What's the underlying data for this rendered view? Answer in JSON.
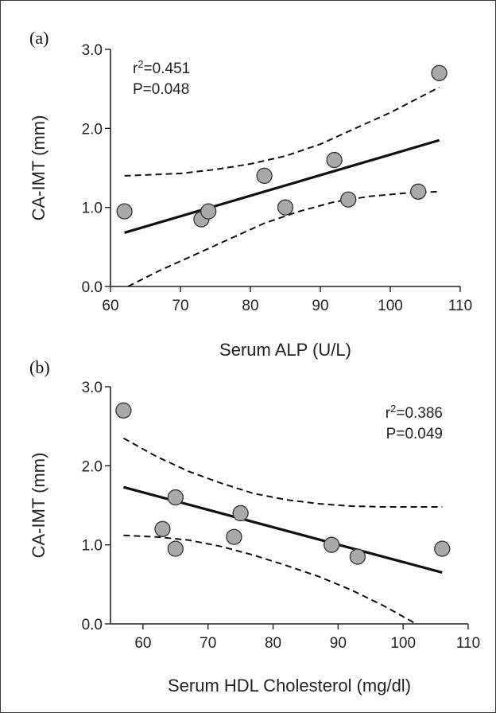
{
  "chart_data": [
    {
      "type": "scatter",
      "panel_label": "(a)",
      "xlabel": "Serum ALP (U/L)",
      "ylabel": "CA-IMT (mm)",
      "xlim": [
        60,
        110
      ],
      "ylim": [
        0,
        3
      ],
      "x_ticks": [
        "60",
        "70",
        "80",
        "90",
        "100",
        "110"
      ],
      "y_ticks": [
        "0.0",
        "1.0",
        "2.0",
        "3.0"
      ],
      "x_tick_values": [
        60,
        70,
        80,
        90,
        100,
        110
      ],
      "y_tick_values": [
        0,
        1,
        2,
        3
      ],
      "annotation": {
        "line1_prefix": "r",
        "line1_sup": "2",
        "line1_suffix": "=0.451",
        "line2": "P=0.048"
      },
      "annotation_position": "top-left",
      "points": [
        {
          "x": 62,
          "y": 0.95
        },
        {
          "x": 73,
          "y": 0.85
        },
        {
          "x": 74,
          "y": 0.95
        },
        {
          "x": 82,
          "y": 1.4
        },
        {
          "x": 85,
          "y": 1.0
        },
        {
          "x": 92,
          "y": 1.6
        },
        {
          "x": 94,
          "y": 1.1
        },
        {
          "x": 104,
          "y": 1.2
        },
        {
          "x": 107,
          "y": 2.7
        }
      ],
      "regression_line": [
        {
          "x": 62,
          "y": 0.68
        },
        {
          "x": 107,
          "y": 1.85
        }
      ],
      "ci_upper": [
        {
          "x": 62,
          "y": 1.4
        },
        {
          "x": 70,
          "y": 1.43
        },
        {
          "x": 75,
          "y": 1.48
        },
        {
          "x": 80,
          "y": 1.55
        },
        {
          "x": 85,
          "y": 1.65
        },
        {
          "x": 90,
          "y": 1.8
        },
        {
          "x": 95,
          "y": 2.0
        },
        {
          "x": 100,
          "y": 2.2
        },
        {
          "x": 107,
          "y": 2.52
        }
      ],
      "ci_lower": [
        {
          "x": 62.5,
          "y": 0.0
        },
        {
          "x": 67,
          "y": 0.2
        },
        {
          "x": 72,
          "y": 0.4
        },
        {
          "x": 77,
          "y": 0.6
        },
        {
          "x": 82,
          "y": 0.8
        },
        {
          "x": 87,
          "y": 0.95
        },
        {
          "x": 92,
          "y": 1.07
        },
        {
          "x": 97,
          "y": 1.14
        },
        {
          "x": 102,
          "y": 1.18
        },
        {
          "x": 107,
          "y": 1.2
        }
      ],
      "colors": {
        "marker_fill": "#a9a9a9",
        "marker_stroke": "#333333",
        "line": "#111111"
      }
    },
    {
      "type": "scatter",
      "panel_label": "(b)",
      "xlabel": "Serum HDL Cholesterol (mg/dl)",
      "ylabel": "CA-IMT (mm)",
      "xlim": [
        55,
        110
      ],
      "ylim": [
        0,
        3
      ],
      "x_ticks": [
        "60",
        "70",
        "80",
        "90",
        "100",
        "110"
      ],
      "y_ticks": [
        "0.0",
        "1.0",
        "2.0",
        "3.0"
      ],
      "x_tick_values": [
        60,
        70,
        80,
        90,
        100,
        110
      ],
      "y_tick_values": [
        0,
        1,
        2,
        3
      ],
      "annotation": {
        "line1_prefix": "r",
        "line1_sup": "2",
        "line1_suffix": "=0.386",
        "line2": "P=0.049"
      },
      "annotation_position": "top-right",
      "points": [
        {
          "x": 57,
          "y": 2.7
        },
        {
          "x": 63,
          "y": 1.2
        },
        {
          "x": 65,
          "y": 1.6
        },
        {
          "x": 65,
          "y": 0.95
        },
        {
          "x": 74,
          "y": 1.1
        },
        {
          "x": 75,
          "y": 1.4
        },
        {
          "x": 89,
          "y": 1.0
        },
        {
          "x": 93,
          "y": 0.85
        },
        {
          "x": 106,
          "y": 0.95
        }
      ],
      "regression_line": [
        {
          "x": 57,
          "y": 1.73
        },
        {
          "x": 106,
          "y": 0.65
        }
      ],
      "ci_upper": [
        {
          "x": 57,
          "y": 2.35
        },
        {
          "x": 62,
          "y": 2.12
        },
        {
          "x": 67,
          "y": 1.93
        },
        {
          "x": 72,
          "y": 1.78
        },
        {
          "x": 77,
          "y": 1.65
        },
        {
          "x": 82,
          "y": 1.57
        },
        {
          "x": 87,
          "y": 1.52
        },
        {
          "x": 92,
          "y": 1.49
        },
        {
          "x": 97,
          "y": 1.48
        },
        {
          "x": 106,
          "y": 1.48
        }
      ],
      "ci_lower": [
        {
          "x": 57,
          "y": 1.12
        },
        {
          "x": 62,
          "y": 1.1
        },
        {
          "x": 67,
          "y": 1.06
        },
        {
          "x": 72,
          "y": 0.98
        },
        {
          "x": 77,
          "y": 0.87
        },
        {
          "x": 82,
          "y": 0.74
        },
        {
          "x": 87,
          "y": 0.6
        },
        {
          "x": 92,
          "y": 0.43
        },
        {
          "x": 97,
          "y": 0.23
        },
        {
          "x": 102,
          "y": 0.0
        }
      ],
      "colors": {
        "marker_fill": "#a9a9a9",
        "marker_stroke": "#333333",
        "line": "#111111"
      }
    }
  ]
}
